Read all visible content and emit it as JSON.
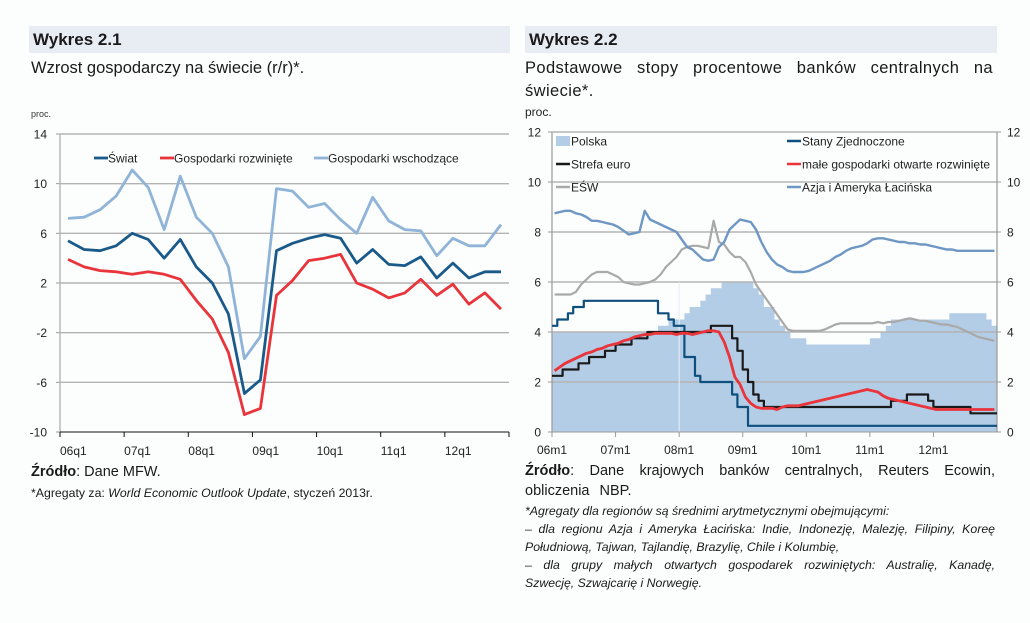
{
  "left": {
    "header": "Wykres 2.1",
    "subtitle": "Wzrost gospodarczy na świecie (r/r)*.",
    "source_label": "Źródło",
    "source_text": ": Dane MFW.",
    "note_prefix": "*Agregaty za: ",
    "note_italic": "World Economic Outlook Update",
    "note_suffix": ", styczeń 2013r."
  },
  "right": {
    "header": "Wykres 2.2",
    "subtitle": "Podstawowe stopy procentowe banków centralnych na świecie*.",
    "source_label": "Źródło",
    "source_text": ": Dane krajowych banków centralnych, Reuters Ecowin, obliczenia NBP.",
    "note_lines": [
      "*Agregaty dla regionów są średnimi arytmetycznymi obejmującymi:",
      "– dla regionu Azja i Ameryka Łacińska: Indie, Indonezję, Malezję, Filipiny, Koreę",
      "Południową, Tajwan, Tajlandię, Brazylię, Chile i Kolumbię,",
      "– dla grupy małych otwartych gospodarek rozwiniętych: Australię, Kanadę,",
      "Szwecję, Szwajcarię i Norwegię."
    ]
  },
  "chart_data": [
    {
      "type": "line",
      "title": "Wzrost gospodarczy na świecie (r/r)*.",
      "ylabel": "proc.",
      "xlabel": "",
      "ylim": [
        -10,
        14
      ],
      "yticks": [
        -10,
        -6,
        -2,
        2,
        6,
        10,
        14
      ],
      "xtick_labels": [
        "06q1",
        "07q1",
        "08q1",
        "09q1",
        "10q1",
        "11q1",
        "12q1"
      ],
      "grid": true,
      "legend": "top",
      "x": [
        "06q1",
        "06q2",
        "06q3",
        "06q4",
        "07q1",
        "07q2",
        "07q3",
        "07q4",
        "08q1",
        "08q2",
        "08q3",
        "08q4",
        "09q1",
        "09q2",
        "09q3",
        "09q4",
        "10q1",
        "10q2",
        "10q3",
        "10q4",
        "11q1",
        "11q2",
        "11q3",
        "11q4",
        "12q1",
        "12q2",
        "12q3",
        "12q4"
      ],
      "series": [
        {
          "name": "Świat",
          "color": "#1a5a8a",
          "values": [
            5.4,
            4.7,
            4.6,
            5.0,
            6.0,
            5.5,
            4.0,
            5.5,
            3.3,
            2.0,
            -0.5,
            -6.9,
            -5.8,
            4.6,
            5.2,
            5.6,
            5.9,
            5.6,
            3.6,
            4.7,
            3.5,
            3.4,
            4.1,
            2.4,
            3.6,
            2.4,
            2.9,
            2.9
          ]
        },
        {
          "name": "Gospodarki rozwinięte",
          "color": "#e8343a",
          "values": [
            3.9,
            3.3,
            3.0,
            2.9,
            2.7,
            2.9,
            2.7,
            2.3,
            0.6,
            -0.9,
            -3.6,
            -8.6,
            -8.1,
            1.0,
            2.2,
            3.8,
            4.0,
            4.3,
            2.0,
            1.5,
            0.8,
            1.2,
            2.3,
            1.0,
            1.9,
            0.3,
            1.2,
            -0.1
          ]
        },
        {
          "name": "Gospodarki wschodzące",
          "color": "#8fb4d8",
          "values": [
            7.2,
            7.3,
            7.9,
            9.0,
            11.1,
            9.7,
            6.3,
            10.6,
            7.3,
            6.0,
            3.3,
            -4.1,
            -2.3,
            9.6,
            9.4,
            8.1,
            8.4,
            7.1,
            6.0,
            8.9,
            7.0,
            6.3,
            6.2,
            4.2,
            5.6,
            5.0,
            5.0,
            6.7
          ]
        }
      ]
    },
    {
      "type": "line",
      "title": "Podstawowe stopy procentowe banków centralnych na świecie*.",
      "ylabel": "proc.",
      "xlabel": "",
      "ylim": [
        0,
        12
      ],
      "yticks": [
        0,
        2,
        4,
        6,
        8,
        10,
        12
      ],
      "xtick_labels": [
        "06m1",
        "07m1",
        "08m1",
        "09m1",
        "10m1",
        "11m1",
        "12m1"
      ],
      "grid": true,
      "legend": "top",
      "x_start": "2006-01",
      "frequency": "monthly",
      "series": [
        {
          "name": "Polska",
          "kind": "area",
          "color": "#b4cde6",
          "values": [
            4.0,
            4.0,
            4.0,
            4.0,
            4.0,
            4.0,
            4.0,
            4.0,
            4.0,
            4.0,
            4.0,
            4.0,
            4.0,
            4.0,
            4.0,
            4.0,
            4.0,
            4.0,
            4.0,
            4.0,
            4.25,
            4.25,
            4.5,
            4.5,
            4.5,
            4.75,
            5.0,
            5.0,
            5.25,
            5.5,
            5.75,
            5.75,
            6.0,
            6.0,
            6.0,
            6.0,
            6.0,
            6.0,
            5.75,
            5.5,
            5.0,
            5.0,
            4.5,
            4.25,
            4.0,
            3.75,
            3.75,
            3.75,
            3.5,
            3.5,
            3.5,
            3.5,
            3.5,
            3.5,
            3.5,
            3.5,
            3.5,
            3.5,
            3.5,
            3.5,
            3.75,
            3.75,
            4.0,
            4.25,
            4.5,
            4.5,
            4.5,
            4.5,
            4.5,
            4.5,
            4.5,
            4.5,
            4.5,
            4.5,
            4.5,
            4.75,
            4.75,
            4.75,
            4.75,
            4.75,
            4.75,
            4.75,
            4.5,
            4.25
          ]
        },
        {
          "name": "Stany Zjednoczone",
          "kind": "step",
          "color": "#0e4f7e",
          "values": [
            4.25,
            4.5,
            4.5,
            4.75,
            5.0,
            5.0,
            5.25,
            5.25,
            5.25,
            5.25,
            5.25,
            5.25,
            5.25,
            5.25,
            5.25,
            5.25,
            5.25,
            5.25,
            5.25,
            5.25,
            4.75,
            4.75,
            4.5,
            4.25,
            4.25,
            3.0,
            3.0,
            2.25,
            2.0,
            2.0,
            2.0,
            2.0,
            2.0,
            2.0,
            1.5,
            1.0,
            1.0,
            0.25,
            0.25,
            0.25,
            0.25,
            0.25,
            0.25,
            0.25,
            0.25,
            0.25,
            0.25,
            0.25,
            0.25,
            0.25,
            0.25,
            0.25,
            0.25,
            0.25,
            0.25,
            0.25,
            0.25,
            0.25,
            0.25,
            0.25,
            0.25,
            0.25,
            0.25,
            0.25,
            0.25,
            0.25,
            0.25,
            0.25,
            0.25,
            0.25,
            0.25,
            0.25,
            0.25,
            0.25,
            0.25,
            0.25,
            0.25,
            0.25,
            0.25,
            0.25,
            0.25,
            0.25,
            0.25,
            0.25
          ]
        },
        {
          "name": "Strefa euro",
          "kind": "step",
          "color": "#1a1a1a",
          "values": [
            2.25,
            2.25,
            2.5,
            2.5,
            2.5,
            2.75,
            2.75,
            3.0,
            3.0,
            3.0,
            3.25,
            3.25,
            3.5,
            3.5,
            3.5,
            3.75,
            3.75,
            3.75,
            4.0,
            4.0,
            4.0,
            4.0,
            4.0,
            4.0,
            4.0,
            4.0,
            4.0,
            4.0,
            4.0,
            4.0,
            4.25,
            4.25,
            4.25,
            4.25,
            3.75,
            3.25,
            2.5,
            2.0,
            1.5,
            1.25,
            1.0,
            1.0,
            1.0,
            1.0,
            1.0,
            1.0,
            1.0,
            1.0,
            1.0,
            1.0,
            1.0,
            1.0,
            1.0,
            1.0,
            1.0,
            1.0,
            1.0,
            1.0,
            1.0,
            1.0,
            1.0,
            1.0,
            1.0,
            1.0,
            1.25,
            1.25,
            1.25,
            1.5,
            1.5,
            1.5,
            1.5,
            1.25,
            1.0,
            1.0,
            1.0,
            1.0,
            1.0,
            1.0,
            1.0,
            0.75,
            0.75,
            0.75,
            0.75,
            0.75
          ]
        },
        {
          "name": "małe gospodarki otwarte rozwinięte",
          "kind": "line",
          "color": "#e8343a",
          "values": [
            2.45,
            2.6,
            2.75,
            2.85,
            2.95,
            3.05,
            3.15,
            3.2,
            3.3,
            3.35,
            3.45,
            3.5,
            3.55,
            3.65,
            3.7,
            3.8,
            3.85,
            3.9,
            3.9,
            3.95,
            3.95,
            3.95,
            3.95,
            3.9,
            3.95,
            3.95,
            3.9,
            3.95,
            4.0,
            4.05,
            4.05,
            4.0,
            3.6,
            3.0,
            2.2,
            1.9,
            1.4,
            1.15,
            1.0,
            0.95,
            0.95,
            0.95,
            0.9,
            1.0,
            1.05,
            1.05,
            1.05,
            1.1,
            1.15,
            1.2,
            1.25,
            1.3,
            1.35,
            1.4,
            1.45,
            1.5,
            1.55,
            1.6,
            1.65,
            1.7,
            1.65,
            1.6,
            1.45,
            1.35,
            1.3,
            1.25,
            1.2,
            1.15,
            1.1,
            1.05,
            1.0,
            0.95,
            0.9,
            0.9,
            0.9,
            0.9,
            0.9,
            0.9,
            0.9,
            0.9,
            0.9,
            0.9,
            0.9,
            0.9
          ]
        },
        {
          "name": "EŚW",
          "kind": "line",
          "color": "#a9a9a9",
          "values": [
            5.5,
            5.5,
            5.5,
            5.5,
            5.6,
            5.9,
            6.1,
            6.3,
            6.4,
            6.4,
            6.4,
            6.3,
            6.2,
            6.0,
            5.95,
            5.9,
            5.9,
            5.95,
            6.0,
            6.1,
            6.3,
            6.6,
            6.8,
            7.0,
            7.3,
            7.4,
            7.45,
            7.45,
            7.4,
            7.35,
            8.45,
            7.6,
            7.5,
            7.2,
            7.0,
            7.0,
            6.8,
            6.4,
            5.9,
            5.6,
            5.3,
            5.0,
            4.7,
            4.4,
            4.1,
            4.05,
            4.05,
            4.05,
            4.05,
            4.05,
            4.05,
            4.1,
            4.2,
            4.3,
            4.35,
            4.35,
            4.35,
            4.35,
            4.35,
            4.35,
            4.35,
            4.4,
            4.35,
            4.4,
            4.4,
            4.45,
            4.5,
            4.55,
            4.5,
            4.45,
            4.45,
            4.4,
            4.35,
            4.3,
            4.3,
            4.25,
            4.2,
            4.1,
            4.0,
            3.9,
            3.8,
            3.75,
            3.7,
            3.65
          ]
        },
        {
          "name": "Azja i Ameryka Łacińska",
          "kind": "line",
          "color": "#6f97c3",
          "values": [
            8.75,
            8.8,
            8.85,
            8.85,
            8.75,
            8.7,
            8.6,
            8.45,
            8.45,
            8.4,
            8.35,
            8.3,
            8.2,
            8.05,
            7.9,
            7.95,
            8.0,
            8.85,
            8.5,
            8.4,
            8.3,
            8.2,
            8.1,
            8.0,
            7.7,
            7.4,
            7.3,
            7.1,
            6.9,
            6.85,
            6.9,
            7.4,
            7.6,
            8.1,
            8.3,
            8.5,
            8.45,
            8.4,
            8.1,
            7.6,
            7.2,
            6.9,
            6.7,
            6.6,
            6.45,
            6.4,
            6.4,
            6.4,
            6.45,
            6.55,
            6.65,
            6.75,
            6.85,
            7.0,
            7.1,
            7.25,
            7.35,
            7.4,
            7.45,
            7.55,
            7.7,
            7.75,
            7.75,
            7.7,
            7.65,
            7.6,
            7.6,
            7.55,
            7.55,
            7.5,
            7.5,
            7.45,
            7.4,
            7.35,
            7.3,
            7.3,
            7.25,
            7.25,
            7.25,
            7.25,
            7.25,
            7.25,
            7.25,
            7.25
          ]
        }
      ]
    }
  ]
}
